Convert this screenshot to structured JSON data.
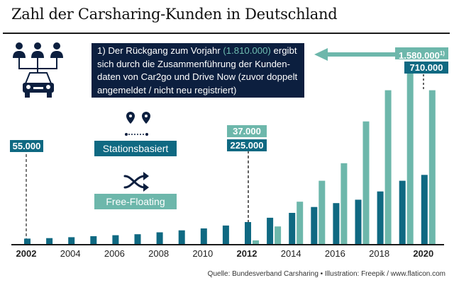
{
  "title": "Zahl der Carsharing-Kunden in Deutschland",
  "footnote": {
    "part1": "1) Der Rückgang zum Vorjahr ",
    "highlight": "(1.810.000)",
    "part2": " ergibt sich durch die Zusammenführung der Kunden­daten von Car2go und Drive Now (zuvor doppelt angemeldet / nicht neu registriert)"
  },
  "labels": {
    "s2002": "55.000",
    "s2012": "225.000",
    "f2012": "37.000",
    "f2020": "1.580.000",
    "f2020_sup": "1)",
    "s2020": "710.000"
  },
  "legend": {
    "station": "Stationsbasiert",
    "free": "Free-Floating",
    "station_icon": "map-pin-route-icon",
    "free_icon": "shuffle-icon",
    "header_icon": "carsharing-people-car-icon"
  },
  "colors": {
    "station": "#0f6982",
    "free": "#6db7ab",
    "dark": "#0c1f3f"
  },
  "source": "Quelle: Bundesverband Carsharing • Illustration: Freepik / www.flaticon.com",
  "chart_data": {
    "type": "bar",
    "title": "Zahl der Carsharing-Kunden in Deutschland",
    "xlabel": "",
    "ylabel": "",
    "categories": [
      "2002",
      "2003",
      "2004",
      "2005",
      "2006",
      "2007",
      "2008",
      "2009",
      "2010",
      "2011",
      "2012",
      "2013",
      "2014",
      "2015",
      "2016",
      "2017",
      "2018",
      "2019",
      "2020"
    ],
    "x_tick_labels": [
      "2002",
      "2004",
      "2006",
      "2008",
      "2010",
      "2012",
      "2014",
      "2016",
      "2018",
      "2020"
    ],
    "bold_ticks": [
      "2002",
      "2012",
      "2020"
    ],
    "series": [
      {
        "name": "Stationsbasiert",
        "values": [
          55000,
          60000,
          70000,
          80000,
          90000,
          100000,
          120000,
          140000,
          160000,
          190000,
          225000,
          270000,
          320000,
          380000,
          420000,
          455000,
          540000,
          650000,
          710000
        ]
      },
      {
        "name": "Free-Floating",
        "values": [
          null,
          null,
          null,
          null,
          null,
          null,
          null,
          null,
          null,
          null,
          37000,
          180000,
          435000,
          650000,
          830000,
          1260000,
          1580000,
          1810000,
          1580000
        ]
      }
    ],
    "ylim": [
      0,
      1900000
    ],
    "grid": false,
    "legend": "left-middle",
    "annotations": [
      "55.000",
      "225.000",
      "37.000",
      "710.000",
      "1.580.000 1)",
      "1) Der Rückgang zum Vorjahr (1.810.000) ..."
    ]
  }
}
